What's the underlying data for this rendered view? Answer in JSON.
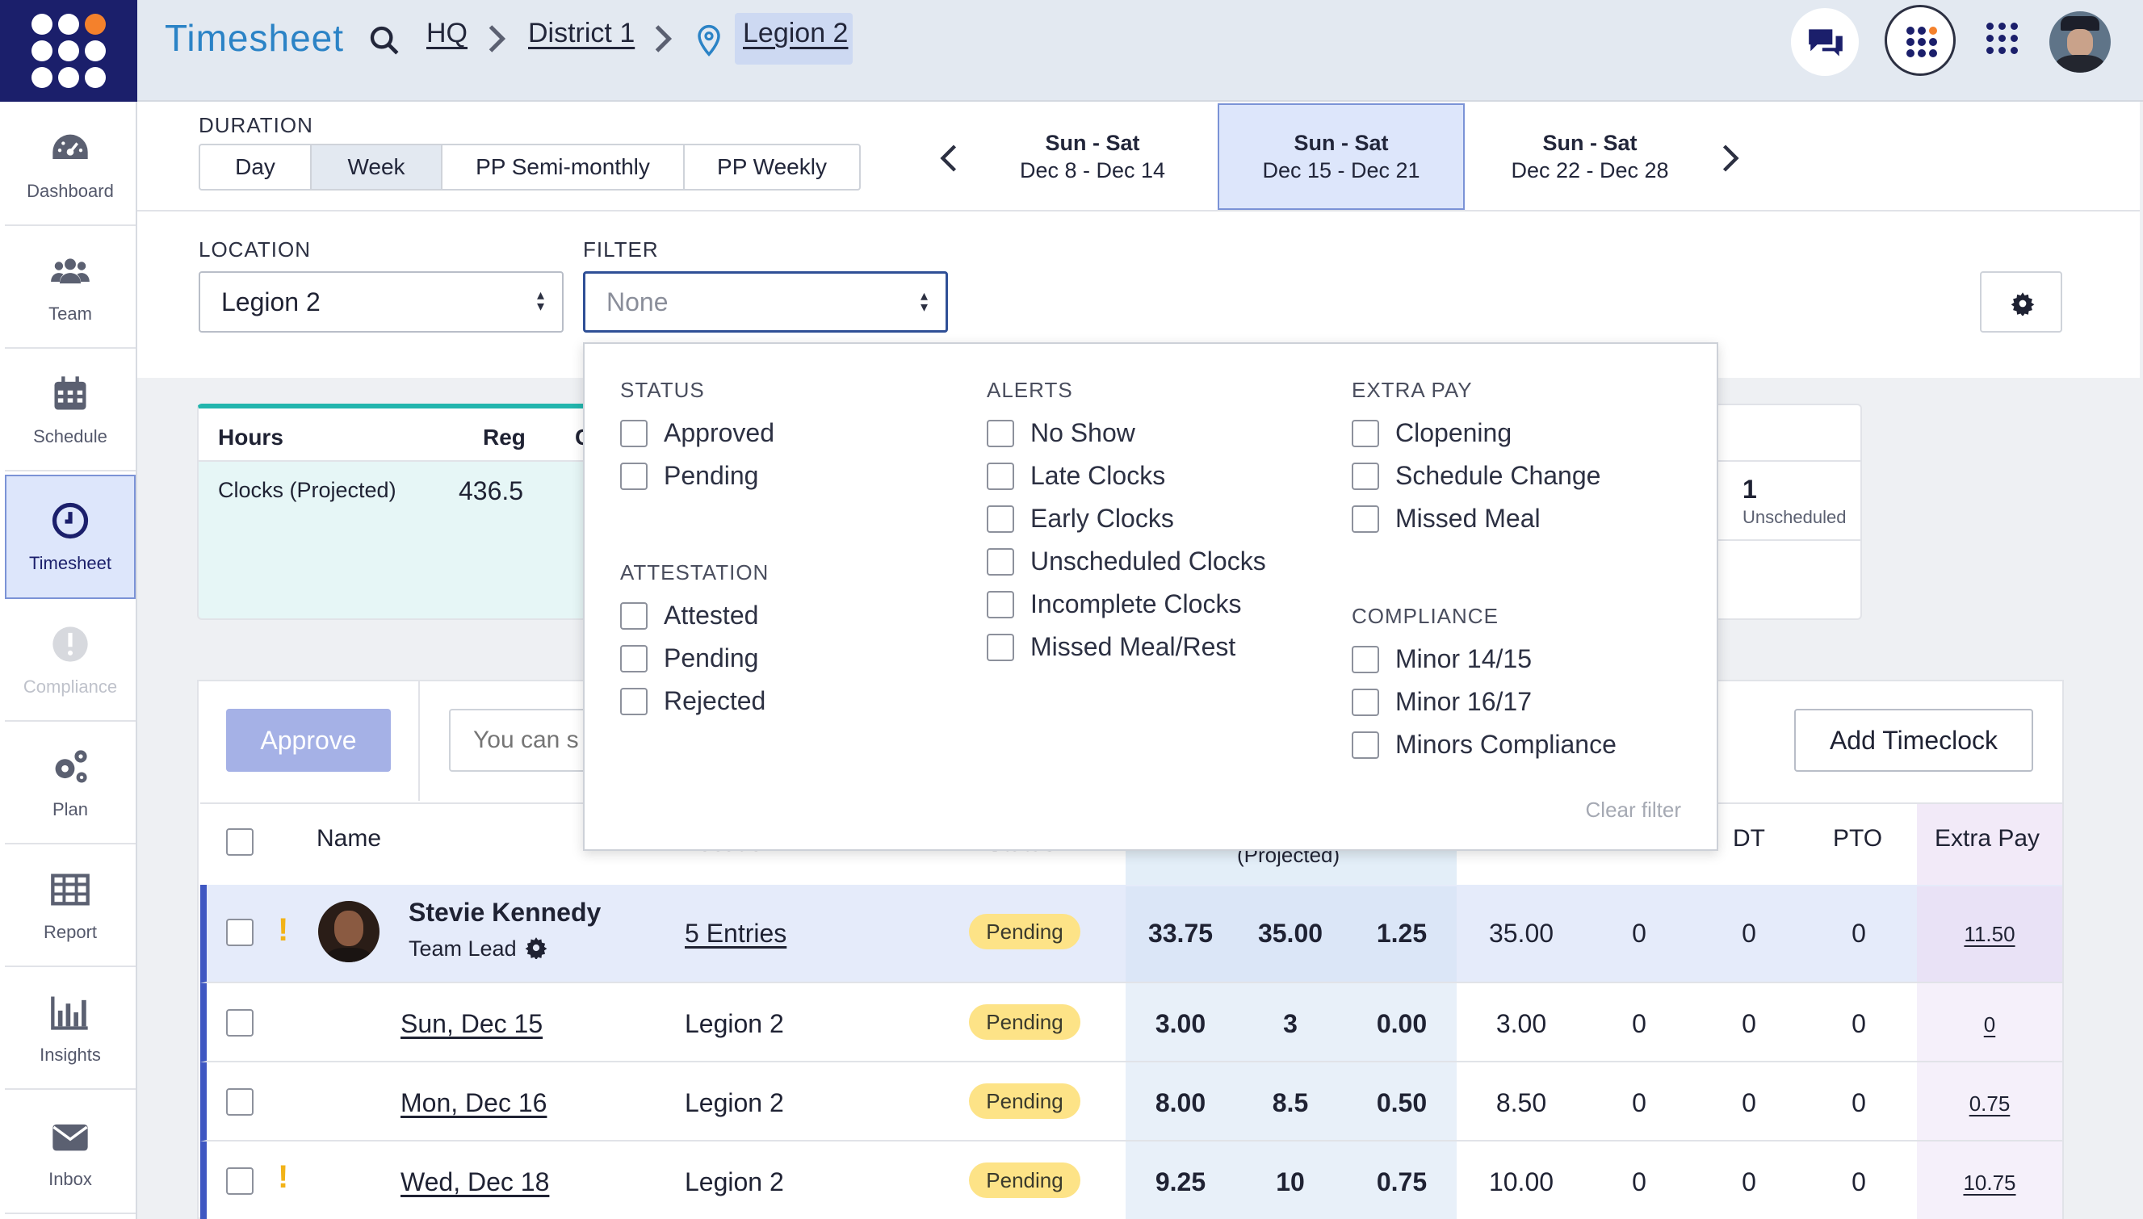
{
  "app": {
    "title": "Timesheet"
  },
  "breadcrumb": {
    "items": [
      "HQ",
      "District 1",
      "Legion 2"
    ]
  },
  "sidebar": {
    "items": [
      {
        "label": "Dashboard",
        "icon": "dashboard-icon"
      },
      {
        "label": "Team",
        "icon": "team-icon"
      },
      {
        "label": "Schedule",
        "icon": "calendar-icon"
      },
      {
        "label": "Timesheet",
        "icon": "clock-icon",
        "active": true
      },
      {
        "label": "Compliance",
        "icon": "alert-icon",
        "disabled": true
      },
      {
        "label": "Plan",
        "icon": "gears-icon"
      },
      {
        "label": "Report",
        "icon": "table-icon"
      },
      {
        "label": "Insights",
        "icon": "bar-chart-icon"
      },
      {
        "label": "Inbox",
        "icon": "inbox-icon"
      }
    ]
  },
  "duration": {
    "label": "DURATION",
    "options": [
      "Day",
      "Week",
      "PP Semi-monthly",
      "PP Weekly"
    ],
    "selected": "Week"
  },
  "weeks": [
    {
      "title": "Sun - Sat",
      "range": "Dec 8 - Dec 14"
    },
    {
      "title": "Sun - Sat",
      "range": "Dec 15 - Dec 21",
      "selected": true
    },
    {
      "title": "Sun - Sat",
      "range": "Dec 22 - Dec 28"
    }
  ],
  "location": {
    "label": "LOCATION",
    "value": "Legion 2"
  },
  "filter": {
    "label": "FILTER",
    "placeholder": "None"
  },
  "summary": {
    "col_hours": "Hours",
    "col_reg": "Reg",
    "col_partial": "C",
    "row_label": "Clocks (Projected)",
    "row_value": "436.5",
    "unscheduled_count": "1",
    "unscheduled_label": "Unscheduled"
  },
  "dropdown": {
    "status": {
      "title": "STATUS",
      "options": [
        "Approved",
        "Pending"
      ]
    },
    "attestation": {
      "title": "ATTESTATION",
      "options": [
        "Attested",
        "Pending",
        "Rejected"
      ]
    },
    "alerts": {
      "title": "ALERTS",
      "options": [
        "No Show",
        "Late Clocks",
        "Early Clocks",
        "Unscheduled Clocks",
        "Incomplete Clocks",
        "Missed Meal/Rest"
      ]
    },
    "extra_pay": {
      "title": "EXTRA PAY",
      "options": [
        "Clopening",
        "Schedule Change",
        "Missed Meal"
      ]
    },
    "compliance": {
      "title": "COMPLIANCE",
      "options": [
        "Minor 14/15",
        "Minor 16/17",
        "Minors Compliance"
      ]
    },
    "clear": "Clear filter"
  },
  "toolbar": {
    "approve": "Approve",
    "search_placeholder": "You can s",
    "add_timeclock": "Add Timeclock"
  },
  "table": {
    "headers": {
      "name": "Name",
      "location": "Location",
      "status": "Status",
      "projected": "(Projected)",
      "dt": "DT",
      "pto": "PTO",
      "extra_pay": "Extra Pay"
    },
    "employee": {
      "name": "Stevie Kennedy",
      "role": "Team Lead",
      "entries": "5 Entries",
      "status": "Pending",
      "values": [
        "33.75",
        "35.00",
        "1.25",
        "35.00",
        "0",
        "0",
        "0"
      ],
      "extra": "11.50"
    },
    "rows": [
      {
        "date": "Sun, Dec 15",
        "location": "Legion 2",
        "status": "Pending",
        "values": [
          "3.00",
          "3",
          "0.00",
          "3.00",
          "0",
          "0",
          "0"
        ],
        "extra": "0",
        "warn": false
      },
      {
        "date": "Mon, Dec 16",
        "location": "Legion 2",
        "status": "Pending",
        "values": [
          "8.00",
          "8.5",
          "0.50",
          "8.50",
          "0",
          "0",
          "0"
        ],
        "extra": "0.75",
        "warn": false
      },
      {
        "date": "Wed, Dec 18",
        "location": "Legion 2",
        "status": "Pending",
        "values": [
          "9.25",
          "10",
          "0.75",
          "10.00",
          "0",
          "0",
          "0"
        ],
        "extra": "10.75",
        "warn": true
      }
    ]
  },
  "colors": {
    "brand": "#1b1f6b",
    "accent": "#f4812c",
    "selected_bg": "#dde6fb",
    "pill": "#fde387",
    "approve_disabled": "#a5b1e6"
  }
}
